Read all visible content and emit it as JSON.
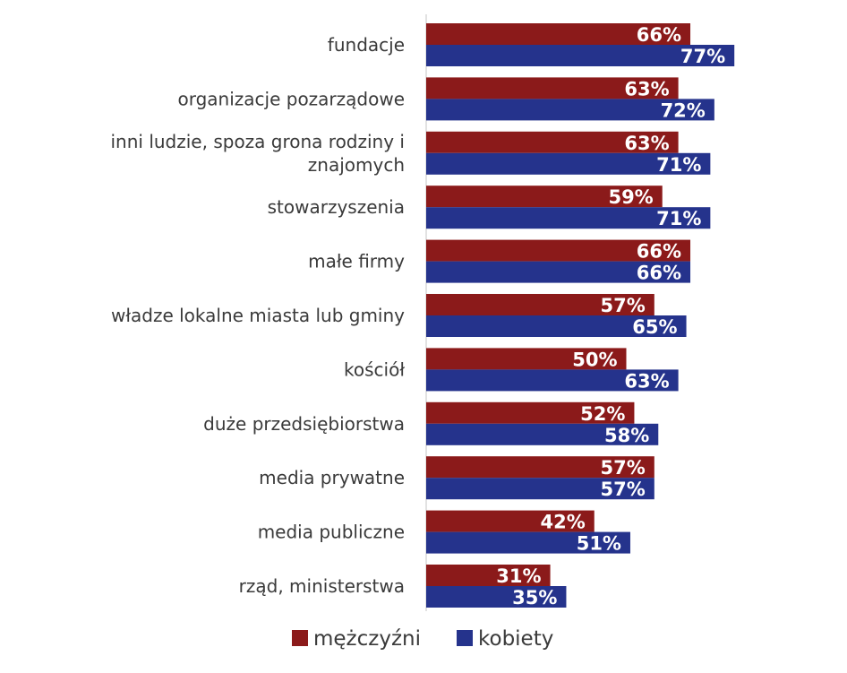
{
  "chart_data": {
    "type": "bar",
    "orientation": "horizontal",
    "categories": [
      [
        "fundacje"
      ],
      [
        "organizacje pozarządowe"
      ],
      [
        "inni ludzie, spoza grona rodziny i",
        "znajomych"
      ],
      [
        "stowarzyszenia"
      ],
      [
        "małe firmy"
      ],
      [
        "władze lokalne miasta lub gminy"
      ],
      [
        "kościół"
      ],
      [
        "duże przedsiębiorstwa"
      ],
      [
        "media prywatne"
      ],
      [
        "media publiczne"
      ],
      [
        "rząd, ministerstwa"
      ]
    ],
    "series": [
      {
        "name": "mężczyźni",
        "color": "#8b1a1a",
        "values": [
          66,
          63,
          63,
          59,
          66,
          57,
          50,
          52,
          57,
          42,
          31
        ]
      },
      {
        "name": "kobiety",
        "color": "#25338c",
        "values": [
          77,
          72,
          71,
          71,
          66,
          65,
          63,
          58,
          57,
          51,
          35
        ]
      }
    ],
    "value_suffix": "%",
    "xlim": [
      0,
      100
    ],
    "legend_position": "bottom",
    "axis_line_color": "#d9d9d9"
  }
}
